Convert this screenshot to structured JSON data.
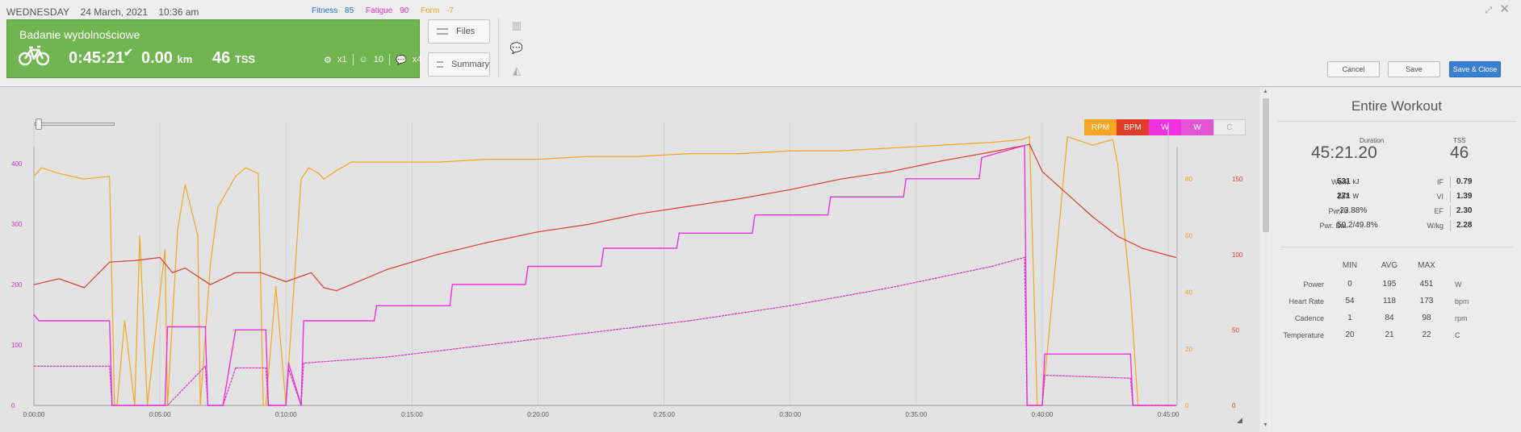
{
  "header": {
    "day": "Wednesday",
    "date": "24 March, 2021",
    "time": "10:36 am",
    "fitness_label": "Fitness",
    "fitness_value": "85",
    "fatigue_label": "Fatigue",
    "fatigue_value": "90",
    "form_label": "Form",
    "form_value": "-7"
  },
  "workout": {
    "title": "Badanie wydolnościowe",
    "duration": "0:45:21",
    "distance": "0.00",
    "distance_unit": "km",
    "tss": "46",
    "tss_unit": "TSS",
    "equipment_count": "x1",
    "feel_value": "10",
    "comments_count": "x4"
  },
  "side_buttons": {
    "files": "Files",
    "summary": "Summary"
  },
  "actions": {
    "cancel": "Cancel",
    "save": "Save",
    "save_close": "Save & Close"
  },
  "colors": {
    "rpm": "#f5a623",
    "bpm": "#e03c2a",
    "power": "#ee32e0",
    "power2": "#d72fc8",
    "green": "#70b550",
    "primary": "#3a7fd0"
  },
  "legend": [
    "RPM",
    "BPM",
    "W",
    "W",
    "C"
  ],
  "chart_data": {
    "type": "line",
    "x_label_ticks": [
      "0:00:00",
      "0:05:00",
      "0:10:00",
      "0:15:00",
      "0:20:00",
      "0:25:00",
      "0:30:00",
      "0:35:00",
      "0:40:00",
      "0:45:00"
    ],
    "y_left_ticks": [
      "0",
      "100",
      "200",
      "300",
      "400"
    ],
    "y_right_rpm_ticks": [
      "0",
      "20",
      "40",
      "60",
      "80"
    ],
    "y_right_bpm_ticks": [
      "0",
      "50",
      "100",
      "150"
    ],
    "xlim_minutes": [
      0,
      45.35
    ],
    "series": [
      {
        "name": "RPM",
        "axis": "rpm",
        "ylim": [
          0,
          100
        ],
        "x": [
          0,
          0.3,
          1.0,
          2.0,
          3.0,
          3.2,
          3.3,
          3.6,
          4.0,
          4.2,
          4.5,
          5.2,
          5.3,
          5.7,
          6.0,
          6.5,
          6.6,
          7.0,
          7.3,
          8.0,
          8.4,
          8.9,
          9.1,
          9.2,
          9.6,
          10.0,
          10.6,
          10.9,
          11.3,
          11.5,
          12.0,
          12.4,
          12.6,
          13.0,
          14.0,
          16.0,
          18.0,
          20.0,
          22.0,
          24.0,
          26.0,
          28.0,
          30.0,
          32.0,
          34.0,
          36.0,
          38.0,
          39.2,
          39.5,
          39.8,
          40.0,
          41.0,
          42.0,
          42.8,
          43.0,
          43.5,
          43.8,
          44.0,
          44.5,
          45.3
        ],
        "y": [
          81,
          84,
          82,
          80,
          81,
          0,
          0,
          30,
          0,
          60,
          0,
          55,
          0,
          62,
          78,
          60,
          0,
          50,
          70,
          81,
          84,
          82,
          0,
          0,
          42,
          0,
          80,
          84,
          82,
          80,
          83,
          85,
          86,
          86,
          86,
          86,
          87,
          87,
          88,
          88,
          89,
          89,
          90,
          90,
          91,
          92,
          93,
          94,
          95,
          0,
          0,
          95,
          92,
          94,
          85,
          40,
          0,
          0,
          0,
          0
        ]
      },
      {
        "name": "BPM",
        "axis": "bpm",
        "ylim": [
          0,
          187.5
        ],
        "x": [
          0,
          1.0,
          2.0,
          3.0,
          4.0,
          5.0,
          5.5,
          6.0,
          7.0,
          8.0,
          9.0,
          10.0,
          11.0,
          11.5,
          12.0,
          14.0,
          16.0,
          18.0,
          20.0,
          22.0,
          24.0,
          26.0,
          28.0,
          30.0,
          32.0,
          34.0,
          36.0,
          38.0,
          39.2,
          39.5,
          40.0,
          41.0,
          42.0,
          43.0,
          44.0,
          45.3
        ],
        "y": [
          80,
          84,
          78,
          95,
          96,
          98,
          88,
          91,
          80,
          88,
          88,
          82,
          88,
          78,
          76,
          90,
          100,
          108,
          115,
          120,
          127,
          132,
          137,
          143,
          150,
          155,
          162,
          168,
          172,
          173,
          155,
          140,
          125,
          112,
          104,
          98
        ]
      },
      {
        "name": "W",
        "axis": "power",
        "ylim": [
          0,
          468
        ],
        "x": [
          0,
          0.2,
          3.0,
          3.1,
          3.6,
          4.5,
          5.2,
          5.3,
          6.8,
          6.9,
          7.5,
          8.0,
          9.2,
          9.3,
          10.0,
          10.1,
          10.6,
          10.7,
          13.5,
          13.6,
          16.5,
          16.6,
          19.5,
          19.6,
          22.5,
          22.6,
          25.5,
          25.6,
          28.5,
          28.6,
          31.5,
          31.6,
          34.5,
          34.6,
          37.5,
          37.6,
          39.3,
          39.4,
          40.0,
          40.1,
          43.5,
          43.6,
          45.3
        ],
        "y": [
          150,
          140,
          140,
          0,
          0,
          0,
          0,
          130,
          130,
          0,
          0,
          125,
          125,
          0,
          0,
          70,
          0,
          140,
          140,
          165,
          165,
          200,
          200,
          230,
          230,
          260,
          260,
          285,
          285,
          315,
          315,
          345,
          345,
          375,
          375,
          410,
          430,
          0,
          0,
          85,
          85,
          0,
          0
        ]
      },
      {
        "name": "W",
        "axis": "power",
        "ylim": [
          0,
          468
        ],
        "x": [
          0,
          0.2,
          3.0,
          3.1,
          3.6,
          5.3,
          6.8,
          6.9,
          7.5,
          8.0,
          9.2,
          9.3,
          10.0,
          10.1,
          10.6,
          10.7,
          14.0,
          18.0,
          22.0,
          26.0,
          30.0,
          34.0,
          38.0,
          39.3,
          39.4,
          40.0,
          40.1,
          43.5,
          43.6,
          45.3
        ],
        "y": [
          65,
          65,
          65,
          0,
          0,
          0,
          65,
          0,
          0,
          62,
          62,
          0,
          0,
          60,
          0,
          70,
          80,
          100,
          120,
          140,
          165,
          195,
          230,
          245,
          0,
          0,
          50,
          45,
          0,
          0
        ]
      }
    ]
  },
  "summary": {
    "title": "Entire Workout",
    "duration_label": "Duration",
    "duration": "45:21.20",
    "tss_label": "TSS",
    "tss": "46",
    "work_label": "Work",
    "work": "531",
    "work_unit": "kJ",
    "if_label": "IF",
    "if": "0.79",
    "np_label": "NP",
    "np": "271",
    "np_unit": "W",
    "vi_label": "VI",
    "vi": "1.39",
    "pwhr_label": "Pw:Hr",
    "pwhr": "-23.88%",
    "ef_label": "EF",
    "ef": "2.30",
    "pwrbal_label": "Pwr. Bal.",
    "pwrbal": "50.2/49.8%",
    "wkg_label": "W/kg",
    "wkg": "2.28",
    "cols": [
      "MIN",
      "AVG",
      "MAX"
    ],
    "rows": [
      {
        "label": "Power",
        "min": "0",
        "avg": "195",
        "max": "451",
        "unit": "W"
      },
      {
        "label": "Heart Rate",
        "min": "54",
        "avg": "118",
        "max": "173",
        "unit": "bpm"
      },
      {
        "label": "Cadence",
        "min": "1",
        "avg": "84",
        "max": "98",
        "unit": "rpm"
      },
      {
        "label": "Temperature",
        "min": "20",
        "avg": "21",
        "max": "22",
        "unit": "C"
      }
    ]
  }
}
